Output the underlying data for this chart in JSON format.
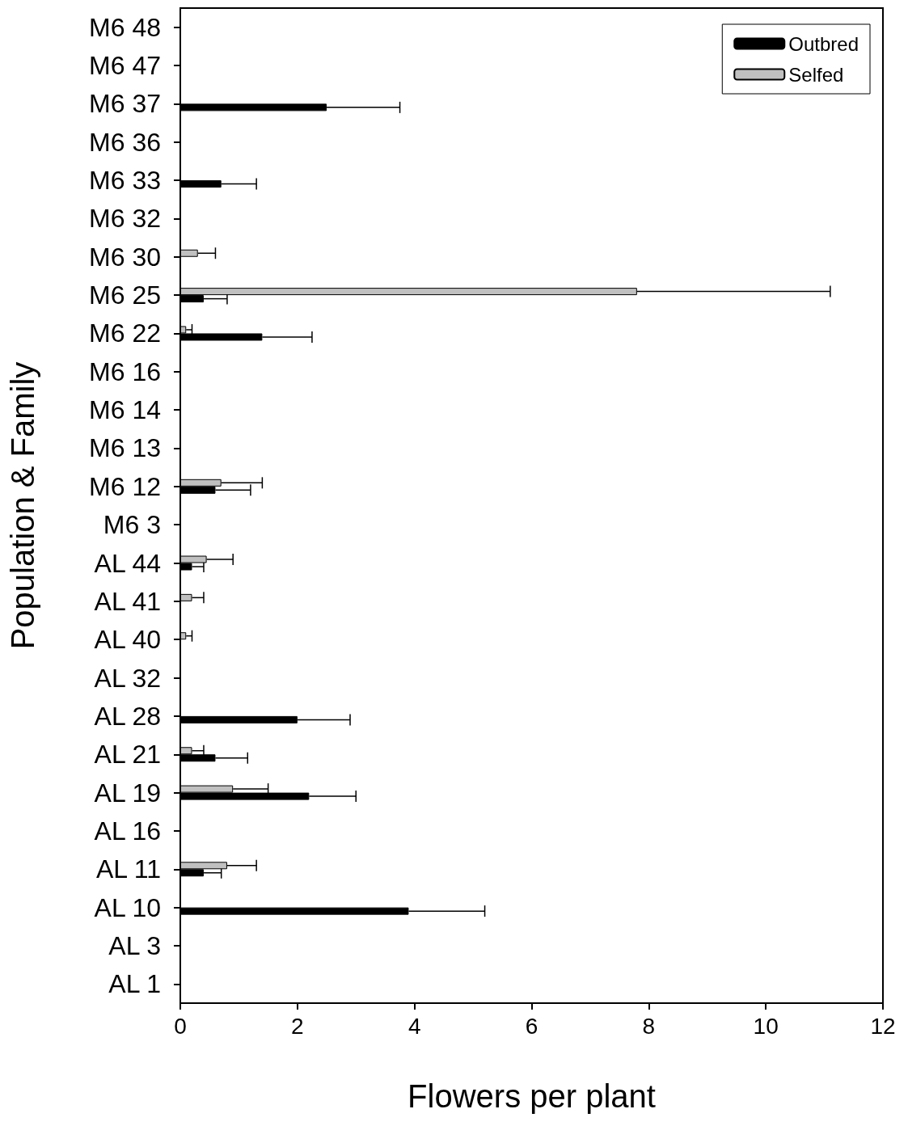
{
  "chart_data": {
    "type": "bar",
    "orientation": "horizontal",
    "xlabel": "Flowers per plant",
    "ylabel": "Population & Family",
    "categories": [
      "M6 48",
      "M6 47",
      "M6 37",
      "M6 36",
      "M6 33",
      "M6 32",
      "M6 30",
      "M6 25",
      "M6 22",
      "M6 16",
      "M6 14",
      "M6 13",
      "M6 12",
      "M6 3",
      "AL 44",
      "AL 41",
      "AL 40",
      "AL 32",
      "AL 28",
      "AL 21",
      "AL 19",
      "AL 16",
      "AL 11",
      "AL 10",
      "AL 3",
      "AL 1"
    ],
    "series": [
      {
        "name": "Outbred",
        "color": "#000000",
        "values": [
          null,
          null,
          2.5,
          null,
          0.7,
          null,
          null,
          0.4,
          1.4,
          null,
          null,
          null,
          0.6,
          null,
          0.2,
          null,
          null,
          null,
          2.0,
          0.6,
          2.2,
          null,
          0.4,
          3.9,
          null,
          null
        ],
        "errors": [
          null,
          null,
          1.25,
          null,
          0.6,
          null,
          null,
          0.4,
          0.85,
          null,
          null,
          null,
          0.6,
          null,
          0.2,
          null,
          null,
          null,
          0.9,
          0.55,
          0.8,
          null,
          0.3,
          1.3,
          null,
          null
        ]
      },
      {
        "name": "Selfed",
        "color": "#c0c0c0",
        "values": [
          null,
          null,
          null,
          null,
          null,
          null,
          0.3,
          7.8,
          0.1,
          null,
          null,
          null,
          0.7,
          null,
          0.45,
          0.2,
          0.1,
          null,
          null,
          0.2,
          0.9,
          null,
          0.8,
          null,
          null,
          null
        ],
        "errors": [
          null,
          null,
          null,
          null,
          null,
          null,
          0.3,
          3.3,
          0.1,
          null,
          null,
          null,
          0.7,
          null,
          0.45,
          0.2,
          0.1,
          null,
          null,
          0.2,
          0.6,
          null,
          0.5,
          null,
          null,
          null
        ]
      }
    ],
    "xlim": [
      0,
      12
    ],
    "xticks": [
      0,
      2,
      4,
      6,
      8,
      10,
      12
    ],
    "grid": false,
    "legend": "top right"
  }
}
